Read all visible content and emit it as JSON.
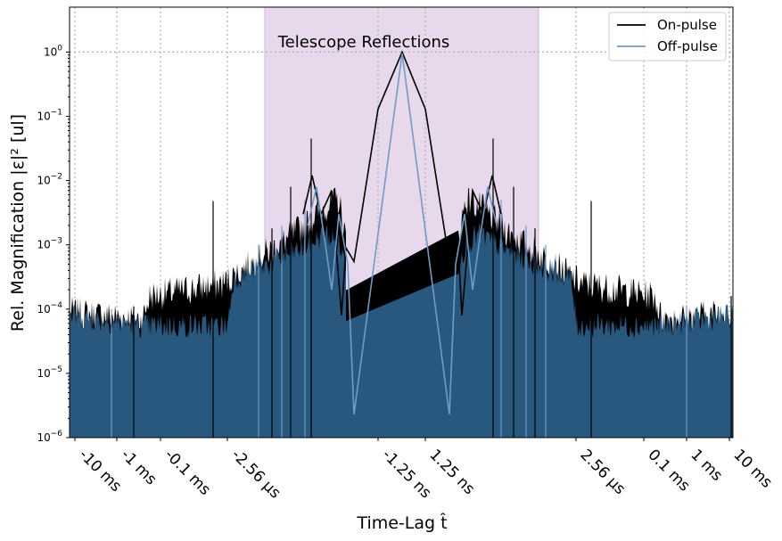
{
  "chart_data": {
    "type": "line",
    "xlabel": "Time-Lag t̂",
    "ylabel": "Rel. Magnification  |ε|² [ul]",
    "yscale": "log",
    "ylim": [
      1e-06,
      5
    ],
    "grid": "dotted vertical lines at x ticks, dotted horizontal line at 10^0",
    "legend_position": "upper-right",
    "y_ticks": [
      {
        "value": 1e-06,
        "label": "10^-6",
        "base": "10",
        "exp": "-6"
      },
      {
        "value": 1e-05,
        "label": "10^-5",
        "base": "10",
        "exp": "-5"
      },
      {
        "value": 0.0001,
        "label": "10^-4",
        "base": "10",
        "exp": "-4"
      },
      {
        "value": 0.001,
        "label": "10^-3",
        "base": "10",
        "exp": "-3"
      },
      {
        "value": 0.01,
        "label": "10^-2",
        "base": "10",
        "exp": "-2"
      },
      {
        "value": 0.1,
        "label": "10^-1",
        "base": "10",
        "exp": "-1"
      },
      {
        "value": 1,
        "label": "10^0",
        "base": "10",
        "exp": "0"
      }
    ],
    "x_ticks": [
      "-10 ms",
      "-1 ms",
      "-0.1 ms",
      "-2.56 µs",
      "-1.25 ns",
      "1.25 ns",
      "2.56 µs",
      "0.1 ms",
      "1 ms",
      "10 ms"
    ],
    "annotation": {
      "text": "Telescope Reflections",
      "region": [
        "-5.12 µs",
        "5.12 µs"
      ],
      "color": "#e8d8eb"
    },
    "series": [
      {
        "name": "On-pulse",
        "color": "#000000",
        "x": [
          "-10 ms",
          "-1 ms",
          "-0.1 ms",
          "-2.56 µs",
          "-1.25 ns",
          "0",
          "1.25 ns",
          "2.56 µs",
          "0.1 ms",
          "1 ms",
          "10 ms"
        ],
        "values": [
          9e-05,
          8e-05,
          0.00015,
          0.0006,
          0.13,
          1.0,
          0.13,
          0.0006,
          0.00015,
          8e-05,
          9e-05
        ]
      },
      {
        "name": "Off-pulse",
        "color": "#6f9bc7",
        "x": [
          "-10 ms",
          "-1 ms",
          "-0.1 ms",
          "-2.56 µs",
          "-1.25 ns",
          "0",
          "1.25 ns",
          "2.56 µs",
          "0.1 ms",
          "1 ms",
          "10 ms"
        ],
        "values": [
          8e-05,
          6e-05,
          6e-05,
          0.0003,
          5e-06,
          1.0,
          5e-06,
          0.0003,
          6e-05,
          6e-05,
          8e-05
        ]
      }
    ]
  }
}
